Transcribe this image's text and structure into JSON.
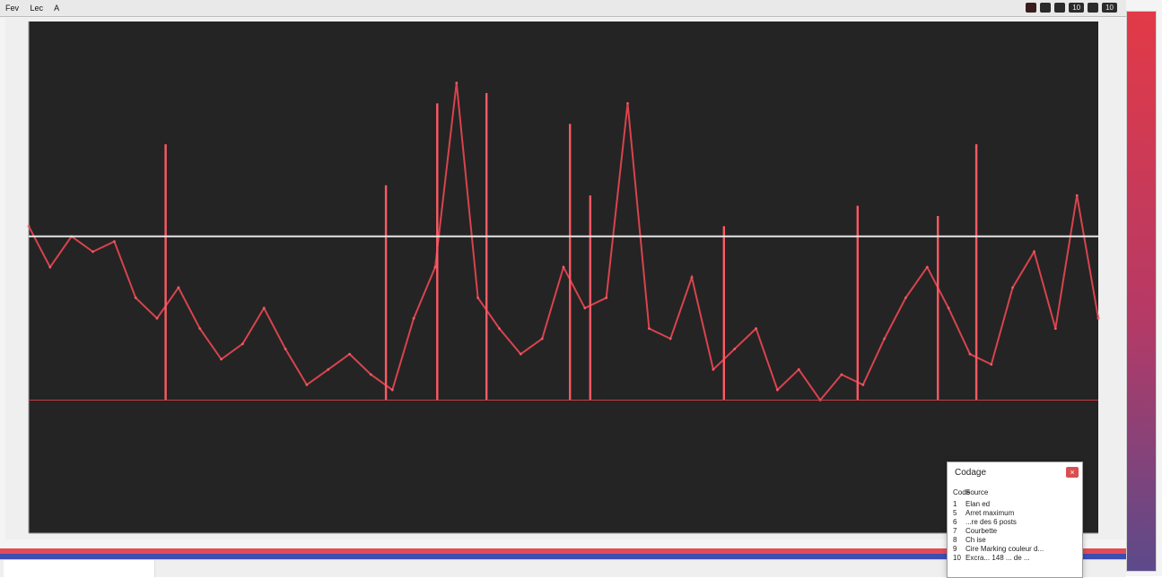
{
  "app": {
    "menu": [
      "Fev",
      "Lec",
      "A"
    ],
    "status": [
      "",
      "",
      "",
      "10",
      "",
      "10"
    ]
  },
  "chart_data": {
    "type": "line",
    "ylim": [
      0,
      100
    ],
    "x": [
      0,
      2,
      4,
      6,
      8,
      10,
      12,
      14,
      16,
      18,
      20,
      22,
      24,
      26,
      28,
      30,
      32,
      34,
      36,
      38,
      40,
      42,
      44,
      46,
      48,
      50,
      52,
      54,
      56,
      58,
      60,
      62,
      64,
      66,
      68,
      70,
      72,
      74,
      76,
      78,
      80,
      82,
      84,
      86,
      88,
      90,
      92,
      94,
      96,
      98,
      100
    ],
    "series": [
      {
        "values": [
          60,
          52,
          58,
          55,
          57,
          46,
          42,
          48,
          40,
          34,
          37,
          44,
          36,
          29,
          32,
          35,
          31,
          28,
          42,
          52,
          88,
          46,
          40,
          35,
          38,
          52,
          44,
          46,
          84,
          40,
          38,
          50,
          32,
          36,
          40,
          28,
          32,
          26,
          31,
          29,
          38,
          46,
          52,
          44,
          35,
          33,
          48,
          55,
          40,
          66,
          42
        ]
      },
      {
        "values": [
          58,
          58,
          58,
          58,
          58,
          58,
          58,
          58,
          58,
          58,
          58,
          58,
          58,
          58,
          58,
          58,
          58,
          58,
          58,
          58,
          58,
          58,
          58,
          58,
          58,
          58,
          58,
          58,
          58,
          58,
          58,
          58,
          58,
          58,
          58,
          58,
          58,
          58,
          58,
          58,
          58,
          58,
          58,
          58,
          58,
          58,
          58,
          58,
          58,
          58,
          58
        ]
      },
      {
        "values": [
          26,
          26,
          26,
          26,
          26,
          26,
          26,
          26,
          26,
          26,
          26,
          26,
          26,
          26,
          26,
          26,
          26,
          26,
          26,
          26,
          26,
          26,
          26,
          26,
          26,
          26,
          26,
          26,
          26,
          26,
          26,
          26,
          26,
          26,
          26,
          26,
          26,
          26,
          26,
          26,
          26,
          26,
          26,
          26,
          26,
          26,
          26,
          26,
          26,
          26,
          26
        ]
      }
    ],
    "spikes": [
      {
        "x": 12.8,
        "value": 76
      },
      {
        "x": 33.4,
        "value": 68
      },
      {
        "x": 38.2,
        "value": 84
      },
      {
        "x": 42.8,
        "value": 86
      },
      {
        "x": 50.6,
        "value": 80
      },
      {
        "x": 52.5,
        "value": 66
      },
      {
        "x": 65.0,
        "value": 60
      },
      {
        "x": 77.5,
        "value": 64
      },
      {
        "x": 85.0,
        "value": 62
      },
      {
        "x": 88.6,
        "value": 76
      }
    ]
  },
  "codage": {
    "title": "Codage",
    "close": "×",
    "columns": [
      "Code",
      "Source"
    ],
    "items": [
      {
        "code": "1",
        "label": "Elan ed"
      },
      {
        "code": "5",
        "label": "Arret maximum"
      },
      {
        "code": "6",
        "label": "...re des 6 posts"
      },
      {
        "code": "7",
        "label": "Courbette"
      },
      {
        "code": "8",
        "label": "Ch ise"
      },
      {
        "code": "9",
        "label": "Cire Marking couleur d..."
      },
      {
        "code": "10",
        "label": "Excra... 148 ... de ..."
      }
    ]
  },
  "bottom": {
    "cells": [
      "",
      "",
      "",
      "",
      "",
      ""
    ]
  }
}
